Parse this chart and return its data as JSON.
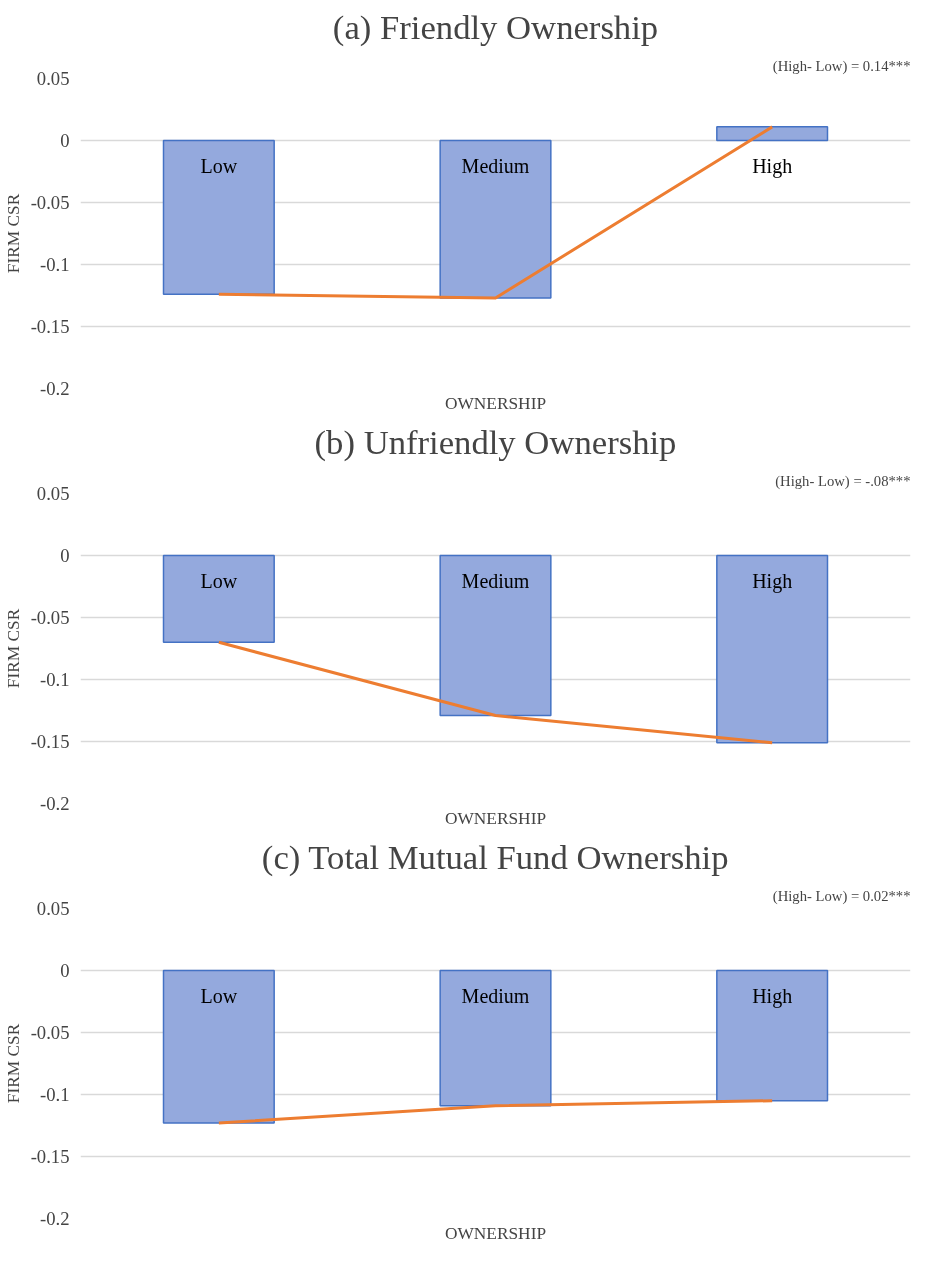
{
  "chart_data": [
    {
      "type": "bar",
      "title": "(a) Friendly Ownership",
      "xlabel": "OWNERSHIP",
      "ylabel": "FIRM CSR",
      "annotations": [
        "(High- Low) = 0.14***"
      ],
      "categories": [
        "Low",
        "Medium",
        "High"
      ],
      "series": [
        {
          "color": "#94a9dd",
          "values": [
            -0.124,
            -0.127,
            0.011
          ]
        },
        {
          "type": "line",
          "color": "#ed7d31",
          "values": [
            -0.124,
            -0.127,
            0.011
          ]
        }
      ],
      "ylim": [
        -0.2,
        0.05
      ],
      "yticks": [
        -0.2,
        -0.15,
        -0.1,
        -0.05,
        0,
        0.05
      ],
      "grid": "y",
      "marker": "none"
    },
    {
      "type": "bar",
      "title": "(b) Unfriendly Ownership",
      "xlabel": "OWNERSHIP",
      "ylabel": "FIRM CSR",
      "annotations": [
        "(High- Low) = -.08***"
      ],
      "categories": [
        "Low",
        "Medium",
        "High"
      ],
      "series": [
        {
          "color": "#94a9dd",
          "values": [
            -0.07,
            -0.129,
            -0.151
          ]
        },
        {
          "type": "line",
          "color": "#ed7d31",
          "values": [
            -0.07,
            -0.129,
            -0.151
          ]
        }
      ],
      "ylim": [
        -0.2,
        0.05
      ],
      "yticks": [
        -0.2,
        -0.15,
        -0.1,
        -0.05,
        0,
        0.05
      ],
      "grid": "y",
      "marker": "none"
    },
    {
      "type": "bar",
      "title": "(c) Total Mutual Fund Ownership",
      "xlabel": "OWNERSHIP",
      "ylabel": "FIRM CSR",
      "annotations": [
        "(High- Low) = 0.02***"
      ],
      "categories": [
        "Low",
        "Medium",
        "High"
      ],
      "series": [
        {
          "color": "#94a9dd",
          "values": [
            -0.123,
            -0.109,
            -0.105
          ]
        },
        {
          "type": "line",
          "color": "#ed7d31",
          "values": [
            -0.123,
            -0.109,
            -0.105
          ]
        }
      ],
      "ylim": [
        -0.2,
        0.05
      ],
      "yticks": [
        -0.2,
        -0.15,
        -0.1,
        -0.05,
        0,
        0.05
      ],
      "grid": "y",
      "marker": "none"
    }
  ]
}
